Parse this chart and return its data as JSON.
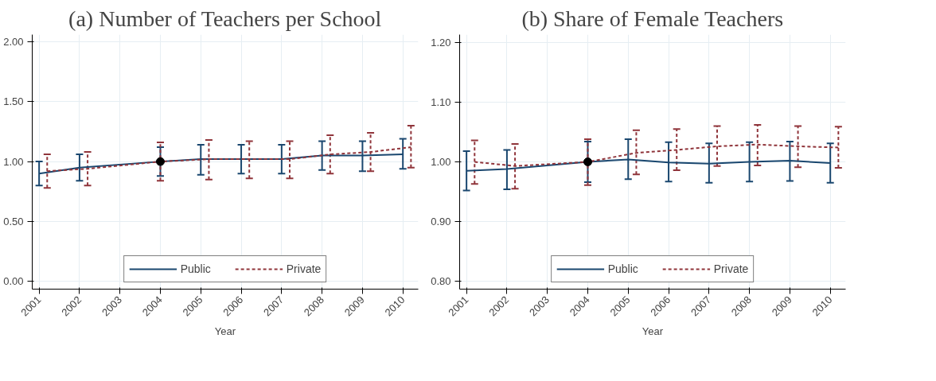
{
  "chart_data": [
    {
      "type": "line",
      "title": "(a) Number of Teachers per School",
      "xlabel": "Year",
      "x": [
        2001,
        2002,
        2004,
        2005,
        2006,
        2007,
        2008,
        2009,
        2010
      ],
      "xlim": [
        2000.83,
        2010.38
      ],
      "xticks": [
        2001,
        2002,
        2003,
        2004,
        2005,
        2006,
        2007,
        2008,
        2009,
        2010
      ],
      "ylim": [
        -0.065,
        2.06
      ],
      "yticks": [
        {
          "value": 0,
          "label": "0.00"
        },
        {
          "value": 0.5,
          "label": "0.50"
        },
        {
          "value": 1,
          "label": "1.00"
        },
        {
          "value": 1.5,
          "label": "1.50"
        },
        {
          "value": 2,
          "label": "2.00"
        }
      ],
      "grid": true,
      "legend": "bottom",
      "series": [
        {
          "name": "Public",
          "color": "#1a476f",
          "line_style": "solid",
          "values": [
            0.9,
            0.95,
            1.0,
            1.02,
            1.02,
            1.02,
            1.05,
            1.05,
            1.06
          ],
          "errors": [
            [
              0.8,
              1.0
            ],
            [
              0.84,
              1.06
            ],
            [
              0.88,
              1.12
            ],
            [
              0.89,
              1.14
            ],
            [
              0.9,
              1.14
            ],
            [
              0.9,
              1.14
            ],
            [
              0.93,
              1.17
            ],
            [
              0.92,
              1.17
            ],
            [
              0.94,
              1.19
            ]
          ]
        },
        {
          "name": "Private",
          "color": "#90353b",
          "line_style": "dashed",
          "x": [
            2001.2,
            2002.2,
            2004,
            2005.2,
            2006.2,
            2007.2,
            2008.2,
            2009.2,
            2010.2
          ],
          "values": [
            0.92,
            0.94,
            1.0,
            1.02,
            1.02,
            1.02,
            1.06,
            1.08,
            1.12
          ],
          "errors": [
            [
              0.78,
              1.06
            ],
            [
              0.8,
              1.08
            ],
            [
              0.84,
              1.16
            ],
            [
              0.85,
              1.18
            ],
            [
              0.86,
              1.17
            ],
            [
              0.86,
              1.17
            ],
            [
              0.9,
              1.22
            ],
            [
              0.92,
              1.24
            ],
            [
              0.95,
              1.3
            ]
          ]
        },
        {
          "type": "scatter",
          "marker": "circle",
          "color": "#000000",
          "x": [
            2004
          ],
          "values": [
            1.0
          ]
        }
      ]
    },
    {
      "type": "line",
      "title": "(b) Share of Female Teachers",
      "xlabel": "Year",
      "x": [
        2001,
        2002,
        2004,
        2005,
        2006,
        2007,
        2008,
        2009,
        2010
      ],
      "xlim": [
        2000.83,
        2010.38
      ],
      "xticks": [
        2001,
        2002,
        2003,
        2004,
        2005,
        2006,
        2007,
        2008,
        2009,
        2010
      ],
      "ylim": [
        0.787,
        1.213
      ],
      "yticks": [
        {
          "value": 0.8,
          "label": "0.80"
        },
        {
          "value": 0.9,
          "label": "0.90"
        },
        {
          "value": 1,
          "label": "1.00"
        },
        {
          "value": 1.1,
          "label": "1.10"
        },
        {
          "value": 1.2,
          "label": "1.20"
        }
      ],
      "grid": true,
      "legend": "bottom",
      "series": [
        {
          "name": "Public",
          "color": "#1a476f",
          "line_style": "solid",
          "values": [
            0.985,
            0.988,
            1.0,
            1.004,
            0.999,
            0.997,
            1.0,
            1.002,
            0.998
          ],
          "errors": [
            [
              0.952,
              1.018
            ],
            [
              0.954,
              1.02
            ],
            [
              0.966,
              1.034
            ],
            [
              0.971,
              1.038
            ],
            [
              0.967,
              1.033
            ],
            [
              0.965,
              1.031
            ],
            [
              0.967,
              1.033
            ],
            [
              0.968,
              1.034
            ],
            [
              0.965,
              1.031
            ]
          ]
        },
        {
          "name": "Private",
          "color": "#90353b",
          "line_style": "dashed",
          "x": [
            2001.2,
            2002.2,
            2004,
            2005.2,
            2006.2,
            2007.2,
            2008.2,
            2009.2,
            2010.2
          ],
          "values": [
            1.0,
            0.993,
            1.0,
            1.015,
            1.02,
            1.026,
            1.029,
            1.026,
            1.024
          ],
          "errors": [
            [
              0.963,
              1.036
            ],
            [
              0.955,
              1.03
            ],
            [
              0.961,
              1.038
            ],
            [
              0.979,
              1.053
            ],
            [
              0.986,
              1.055
            ],
            [
              0.993,
              1.06
            ],
            [
              0.994,
              1.062
            ],
            [
              0.991,
              1.06
            ],
            [
              0.99,
              1.059
            ]
          ]
        },
        {
          "type": "scatter",
          "marker": "circle",
          "color": "#000000",
          "x": [
            2004
          ],
          "values": [
            1.0
          ]
        }
      ]
    }
  ]
}
